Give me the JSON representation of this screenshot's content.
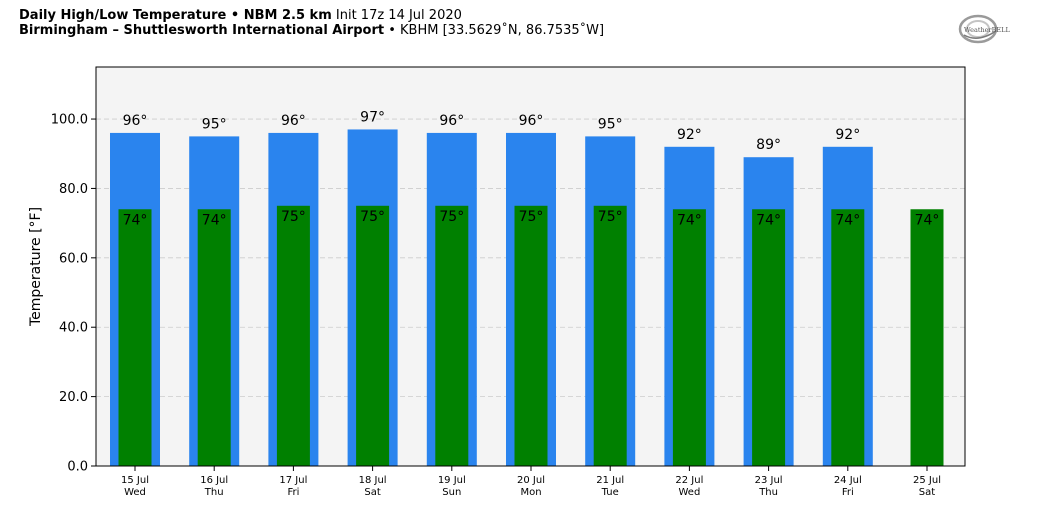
{
  "header": {
    "line1_bold": "Daily High/Low Temperature • NBM 2.5 km",
    "line1_init": "Init 17z 14 Jul 2020",
    "line2_bold": "Birmingham – Shuttlesworth International Airport",
    "line2_rest": "• KBHM [33.5629˚N, 86.7535˚W]"
  },
  "logo": {
    "text": "WeatherBELL",
    "icon": "weatherbell-logo-icon"
  },
  "chart_data": {
    "type": "bar",
    "ylabel": "Temperature [°F]",
    "ylim": [
      0,
      115
    ],
    "yticks": [
      0,
      20,
      40,
      60,
      80,
      100
    ],
    "ytick_labels": [
      "0.0",
      "20.0",
      "40.0",
      "60.0",
      "80.0",
      "100.0"
    ],
    "grid": true,
    "categories": [
      "15 Jul",
      "16 Jul",
      "17 Jul",
      "18 Jul",
      "19 Jul",
      "20 Jul",
      "21 Jul",
      "22 Jul",
      "23 Jul",
      "24 Jul",
      "25 Jul"
    ],
    "weekdays": [
      "Wed",
      "Thu",
      "Fri",
      "Sat",
      "Sun",
      "Mon",
      "Tue",
      "Wed",
      "Thu",
      "Fri",
      "Sat"
    ],
    "series": [
      {
        "values": [
          96,
          95,
          96,
          97,
          96,
          96,
          95,
          92,
          89,
          92,
          null
        ],
        "labels": [
          "96°",
          "95°",
          "96°",
          "97°",
          "96°",
          "96°",
          "95°",
          "92°",
          "89°",
          "92°",
          ""
        ],
        "color": "#2a84ee"
      },
      {
        "values": [
          74,
          74,
          75,
          75,
          75,
          75,
          75,
          74,
          74,
          74,
          74
        ],
        "labels": [
          "74°",
          "74°",
          "75°",
          "75°",
          "75°",
          "75°",
          "75°",
          "74°",
          "74°",
          "74°",
          "74°"
        ],
        "color": "#008000"
      }
    ],
    "colors": {
      "plot_background": "#f4f4f4",
      "grid": "#cccccc"
    }
  }
}
